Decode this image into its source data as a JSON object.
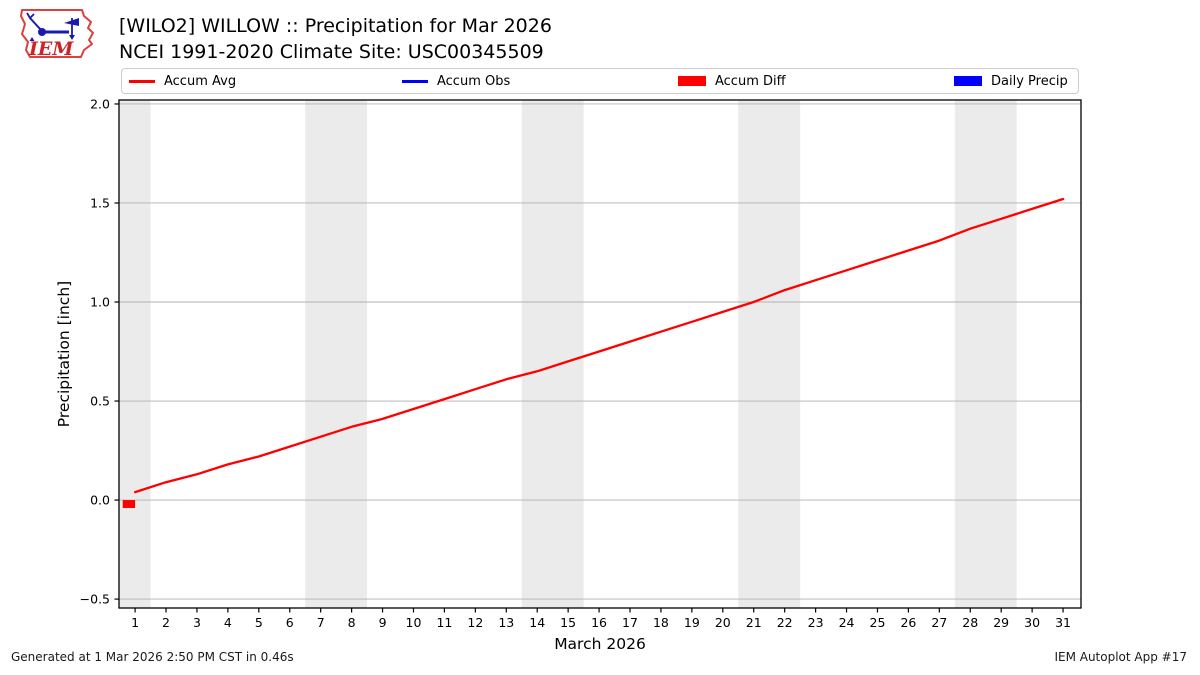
{
  "header": {
    "logo_text": "IEM"
  },
  "legend": {
    "items": [
      {
        "label": "Accum Avg",
        "type": "line",
        "color": "#ff0000"
      },
      {
        "label": "Accum Obs",
        "type": "line",
        "color": "#0000ff"
      },
      {
        "label": "Accum Diff",
        "type": "rect",
        "color": "#ff0000"
      },
      {
        "label": "Daily Precip",
        "type": "rect",
        "color": "#0000ff"
      }
    ]
  },
  "chart_data": {
    "type": "line",
    "title": "[WILO2] WILLOW :: Precipitation for Mar 2026",
    "subtitle": "NCEI 1991-2020 Climate Site: USC00345509",
    "xlabel": "March 2026",
    "ylabel": "Precipitation [inch]",
    "xlim": [
      0.48,
      31.58
    ],
    "ylim": [
      -0.545,
      2.02
    ],
    "grid": true,
    "legend_position": "top",
    "x_ticks": {
      "values": [
        1,
        2,
        3,
        4,
        5,
        6,
        7,
        8,
        9,
        10,
        11,
        12,
        13,
        14,
        15,
        16,
        17,
        18,
        19,
        20,
        21,
        22,
        23,
        24,
        25,
        26,
        27,
        28,
        29,
        30,
        31
      ],
      "labels": [
        "1",
        "2",
        "3",
        "4",
        "5",
        "6",
        "7",
        "8",
        "9",
        "10",
        "11",
        "12",
        "13",
        "14",
        "15",
        "16",
        "17",
        "18",
        "19",
        "20",
        "21",
        "22",
        "23",
        "24",
        "25",
        "26",
        "27",
        "28",
        "29",
        "30",
        "31"
      ]
    },
    "y_ticks": {
      "values": [
        -0.5,
        0.0,
        0.5,
        1.0,
        1.5,
        2.0
      ],
      "labels": [
        "−0.5",
        "0.0",
        "0.5",
        "1.0",
        "1.5",
        "2.0"
      ]
    },
    "weekend_bands": [
      [
        0.5,
        1.5
      ],
      [
        6.5,
        8.5
      ],
      [
        13.5,
        15.5
      ],
      [
        20.5,
        22.5
      ],
      [
        27.5,
        29.5
      ]
    ],
    "series": [
      {
        "name": "Accum Avg",
        "type": "line",
        "color": "#ff0000",
        "x": [
          1,
          2,
          3,
          4,
          5,
          6,
          7,
          8,
          9,
          10,
          11,
          12,
          13,
          14,
          15,
          16,
          17,
          18,
          19,
          20,
          21,
          22,
          23,
          24,
          25,
          26,
          27,
          28,
          29,
          30,
          31
        ],
        "values": [
          0.04,
          0.09,
          0.13,
          0.18,
          0.22,
          0.27,
          0.32,
          0.37,
          0.41,
          0.46,
          0.51,
          0.56,
          0.61,
          0.65,
          0.7,
          0.75,
          0.8,
          0.85,
          0.9,
          0.95,
          1.0,
          1.06,
          1.11,
          1.16,
          1.21,
          1.26,
          1.31,
          1.37,
          1.42,
          1.47,
          1.52
        ]
      },
      {
        "name": "Accum Obs",
        "type": "line",
        "color": "#0000ff",
        "x": [],
        "values": []
      },
      {
        "name": "Accum Diff",
        "type": "bar",
        "color": "#ff0000",
        "bars": [
          {
            "x0": 0.6,
            "x1": 1.0,
            "value": -0.04
          }
        ]
      },
      {
        "name": "Daily Precip",
        "type": "bar",
        "color": "#0000ff",
        "bars": []
      }
    ],
    "colors": {
      "weekend_band": "#ebebeb",
      "grid": "#b0b0b0",
      "spine": "#000000"
    }
  },
  "footer": {
    "left": "Generated at 1 Mar 2026 2:50 PM CST in 0.46s",
    "right": "IEM Autoplot App #17"
  }
}
